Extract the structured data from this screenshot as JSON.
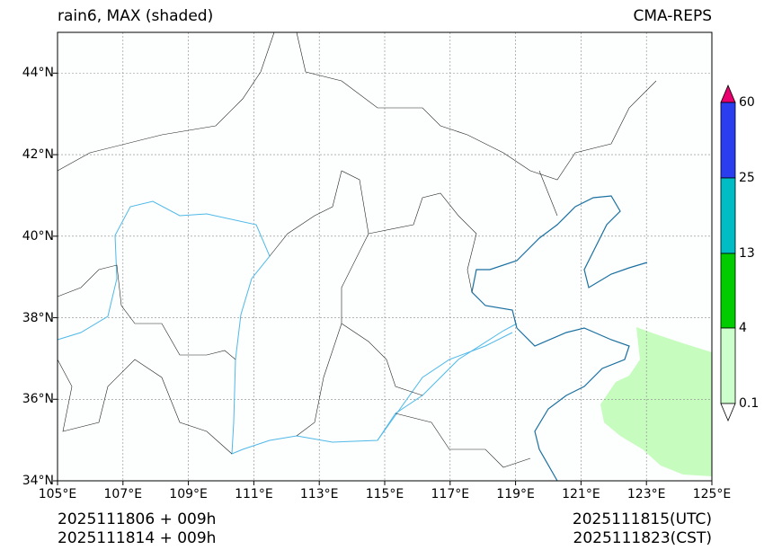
{
  "title": {
    "left": "rain6, MAX (shaded)",
    "right": "CMA-REPS"
  },
  "map": {
    "lon_range": [
      105,
      125
    ],
    "lat_range": [
      34,
      45
    ],
    "lat_ticks": [
      "44°N",
      "42°N",
      "40°N",
      "38°N",
      "36°N",
      "34°N"
    ],
    "lon_ticks": [
      "105°E",
      "107°E",
      "109°E",
      "111°E",
      "113°E",
      "115°E",
      "117°E",
      "119°E",
      "121°E",
      "123°E",
      "125°E"
    ]
  },
  "colorbar": {
    "levels": [
      "60",
      "25",
      "13",
      "4",
      "0.1"
    ],
    "colors": {
      "over": "#e8006e",
      "c25_60": "#2a3ef0",
      "c13_25": "#00bcc4",
      "c4_13": "#00cc00",
      "c01_4": "#ccffcc",
      "under": "#ffffff"
    }
  },
  "footer": {
    "left_line1": "2025111806  +  009h",
    "left_line2": "2025111814  +  009h",
    "right_line1": "2025111815(UTC)",
    "right_line2": "2025111823(CST)"
  }
}
